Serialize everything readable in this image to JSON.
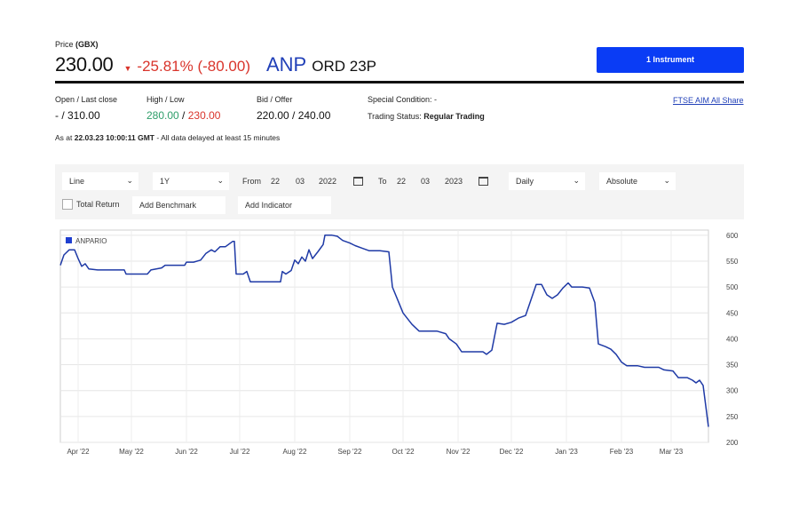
{
  "header": {
    "price_label_prefix": "Price ",
    "price_label_unit": "(GBX)",
    "price": "230.00",
    "change_arrow": "▼",
    "change": "-25.81% (-80.00)",
    "ticker": "ANP",
    "instrument_name": "ORD 23P",
    "instrument_button": "1 Instrument"
  },
  "stats": {
    "open_label": "Open / Last close",
    "open_value": "- / 310.00",
    "highlow_label": "High / Low",
    "high": "280.00",
    "highlow_sep": " / ",
    "low": "230.00",
    "bidoffer_label": "Bid / Offer",
    "bidoffer_value": "220.00 / 240.00",
    "special_label": "Special Condition: -",
    "trading_status_label": "Trading Status: ",
    "trading_status_value": "Regular Trading",
    "index_link": "FTSE AIM All Share"
  },
  "as_at": {
    "prefix": "As at ",
    "timestamp": "22.03.23 10:00:11 GMT",
    "suffix": " - All data delayed at least 15 minutes"
  },
  "controls": {
    "chart_type": "Line",
    "period": "1Y",
    "from_label": "From",
    "from_day": "22",
    "from_month": "03",
    "from_year": "2022",
    "to_label": "To",
    "to_day": "22",
    "to_month": "03",
    "to_year": "2023",
    "frequency": "Daily",
    "scale": "Absolute",
    "total_return_label": "Total Return",
    "add_benchmark": "Add Benchmark",
    "add_indicator": "Add Indicator"
  },
  "colors": {
    "accent_blue": "#0a3cf5",
    "ticker_blue": "#2140b8",
    "negative_red": "#d9342b",
    "positive_green": "#2e9e6a",
    "series_line": "#1f3aa6"
  },
  "icons": {
    "dropdown": "chevron-down-icon",
    "calendar": "calendar-icon",
    "change": "triangle-down-icon"
  },
  "chart_data": {
    "type": "line",
    "legend": "ANPARIO",
    "legend_position": "top-left",
    "x_tick_labels": [
      "Apr '22",
      "May '22",
      "Jun '22",
      "Jul '22",
      "Aug '22",
      "Sep '22",
      "Oct '22",
      "Nov '22",
      "Dec '22",
      "Jan '23",
      "Feb '23",
      "Mar '23"
    ],
    "y_ticks": [
      200,
      250,
      300,
      350,
      400,
      450,
      500,
      550,
      600
    ],
    "ylim": [
      200,
      610
    ],
    "y_axis_position": "right",
    "grid": true,
    "x_start": "2022-03-22",
    "x_end": "2023-03-22",
    "series": [
      {
        "name": "ANPARIO",
        "points": [
          [
            "2022-03-22",
            542
          ],
          [
            "2022-03-24",
            562
          ],
          [
            "2022-03-27",
            572
          ],
          [
            "2022-03-30",
            572
          ],
          [
            "2022-04-01",
            555
          ],
          [
            "2022-04-03",
            540
          ],
          [
            "2022-04-05",
            545
          ],
          [
            "2022-04-07",
            535
          ],
          [
            "2022-04-12",
            533
          ],
          [
            "2022-04-20",
            533
          ],
          [
            "2022-04-27",
            533
          ],
          [
            "2022-04-28",
            525
          ],
          [
            "2022-05-10",
            525
          ],
          [
            "2022-05-12",
            533
          ],
          [
            "2022-05-18",
            537
          ],
          [
            "2022-05-20",
            542
          ],
          [
            "2022-05-28",
            542
          ],
          [
            "2022-05-31",
            542
          ],
          [
            "2022-06-01",
            548
          ],
          [
            "2022-06-05",
            548
          ],
          [
            "2022-06-09",
            552
          ],
          [
            "2022-06-12",
            565
          ],
          [
            "2022-06-15",
            572
          ],
          [
            "2022-06-17",
            568
          ],
          [
            "2022-06-20",
            578
          ],
          [
            "2022-06-23",
            578
          ],
          [
            "2022-06-27",
            588
          ],
          [
            "2022-06-28",
            588
          ],
          [
            "2022-06-29",
            525
          ],
          [
            "2022-07-03",
            525
          ],
          [
            "2022-07-05",
            530
          ],
          [
            "2022-07-07",
            510
          ],
          [
            "2022-07-20",
            510
          ],
          [
            "2022-07-24",
            510
          ],
          [
            "2022-07-25",
            530
          ],
          [
            "2022-07-27",
            525
          ],
          [
            "2022-07-30",
            532
          ],
          [
            "2022-08-01",
            552
          ],
          [
            "2022-08-03",
            545
          ],
          [
            "2022-08-05",
            558
          ],
          [
            "2022-08-07",
            550
          ],
          [
            "2022-08-09",
            572
          ],
          [
            "2022-08-11",
            555
          ],
          [
            "2022-08-14",
            568
          ],
          [
            "2022-08-17",
            582
          ],
          [
            "2022-08-18",
            600
          ],
          [
            "2022-08-22",
            600
          ],
          [
            "2022-08-25",
            598
          ],
          [
            "2022-08-28",
            590
          ],
          [
            "2022-09-01",
            585
          ],
          [
            "2022-09-04",
            580
          ],
          [
            "2022-09-08",
            575
          ],
          [
            "2022-09-12",
            570
          ],
          [
            "2022-09-18",
            570
          ],
          [
            "2022-09-23",
            568
          ],
          [
            "2022-09-25",
            500
          ],
          [
            "2022-09-28",
            475
          ],
          [
            "2022-10-01",
            450
          ],
          [
            "2022-10-06",
            428
          ],
          [
            "2022-10-10",
            415
          ],
          [
            "2022-10-20",
            415
          ],
          [
            "2022-10-25",
            410
          ],
          [
            "2022-10-27",
            400
          ],
          [
            "2022-10-31",
            390
          ],
          [
            "2022-11-03",
            375
          ],
          [
            "2022-11-15",
            375
          ],
          [
            "2022-11-17",
            370
          ],
          [
            "2022-11-20",
            378
          ],
          [
            "2022-11-23",
            430
          ],
          [
            "2022-11-27",
            428
          ],
          [
            "2022-12-01",
            432
          ],
          [
            "2022-12-05",
            440
          ],
          [
            "2022-12-09",
            445
          ],
          [
            "2022-12-12",
            475
          ],
          [
            "2022-12-15",
            505
          ],
          [
            "2022-12-18",
            505
          ],
          [
            "2022-12-21",
            485
          ],
          [
            "2022-12-24",
            478
          ],
          [
            "2022-12-27",
            485
          ],
          [
            "2022-12-30",
            498
          ],
          [
            "2023-01-02",
            508
          ],
          [
            "2023-01-04",
            500
          ],
          [
            "2023-01-10",
            500
          ],
          [
            "2023-01-14",
            498
          ],
          [
            "2023-01-17",
            470
          ],
          [
            "2023-01-19",
            390
          ],
          [
            "2023-01-23",
            385
          ],
          [
            "2023-01-26",
            380
          ],
          [
            "2023-01-29",
            370
          ],
          [
            "2023-02-01",
            355
          ],
          [
            "2023-02-04",
            348
          ],
          [
            "2023-02-10",
            348
          ],
          [
            "2023-02-14",
            345
          ],
          [
            "2023-02-22",
            345
          ],
          [
            "2023-02-25",
            340
          ],
          [
            "2023-03-02",
            338
          ],
          [
            "2023-03-05",
            325
          ],
          [
            "2023-03-10",
            325
          ],
          [
            "2023-03-13",
            320
          ],
          [
            "2023-03-15",
            315
          ],
          [
            "2023-03-17",
            320
          ],
          [
            "2023-03-19",
            310
          ],
          [
            "2023-03-22",
            230
          ]
        ]
      }
    ]
  }
}
